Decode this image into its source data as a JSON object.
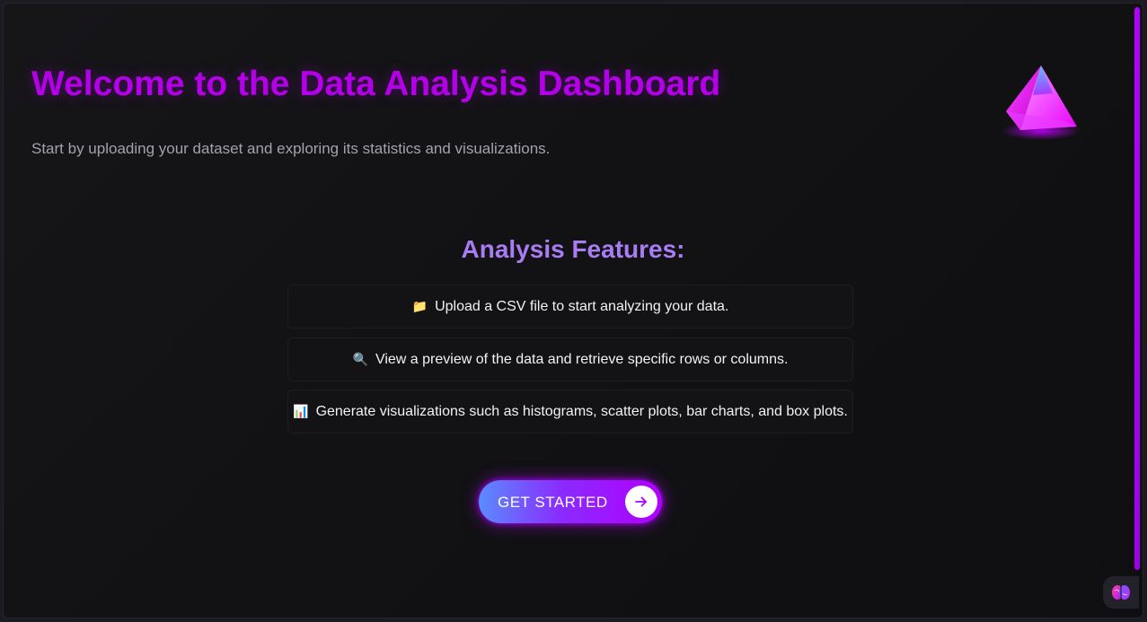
{
  "header": {
    "title": "Welcome to the Data Analysis Dashboard",
    "subtitle": "Start by uploading your dataset and exploring its statistics and visualizations.",
    "logo_icon": "pyramid-logo-icon"
  },
  "features": {
    "heading": "Analysis Features:",
    "items": [
      {
        "emoji": "📁",
        "icon": "folder-icon",
        "text": "Upload a CSV file to start analyzing your data."
      },
      {
        "emoji": "🔍",
        "icon": "magnifier-icon",
        "text": "View a preview of the data and retrieve specific rows or columns."
      },
      {
        "emoji": "📊",
        "icon": "bar-chart-icon",
        "text": "Generate visualizations such as histograms, scatter plots, bar charts, and box plots."
      }
    ]
  },
  "cta": {
    "label": "GET STARTED",
    "icon": "arrow-right-icon"
  },
  "corner_widget": {
    "icon": "brain-icon"
  },
  "colors": {
    "accent": "#b400e8",
    "heading": "#a97cf3",
    "background": "#121214"
  }
}
